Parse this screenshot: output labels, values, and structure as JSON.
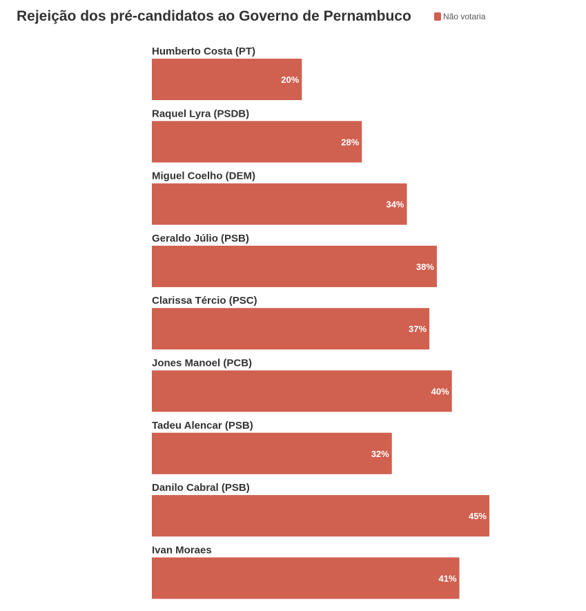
{
  "title": "Rejeição dos pré-candidatos ao Governo de Pernambuco",
  "legend": {
    "label": "Não votaria",
    "color": "#d0604f"
  },
  "chart_data": {
    "type": "bar",
    "orientation": "horizontal",
    "title": "Rejeição dos pré-candidatos ao Governo de Pernambuco",
    "categories": [
      "Humberto Costa (PT)",
      "Raquel Lyra (PSDB)",
      "Miguel Coelho (DEM)",
      "Geraldo Júlio (PSB)",
      "Clarissa Tércio (PSC)",
      "Jones Manoel (PCB)",
      "Tadeu Alencar (PSB)",
      "Danilo Cabral (PSB)",
      "Ivan Moraes"
    ],
    "series": [
      {
        "name": "Não votaria",
        "values": [
          20,
          28,
          34,
          38,
          37,
          40,
          32,
          45,
          41
        ],
        "color": "#d0604f"
      }
    ],
    "value_suffix": "%",
    "xlim": [
      0,
      45
    ],
    "grid": false,
    "legend_position": "top-right"
  }
}
